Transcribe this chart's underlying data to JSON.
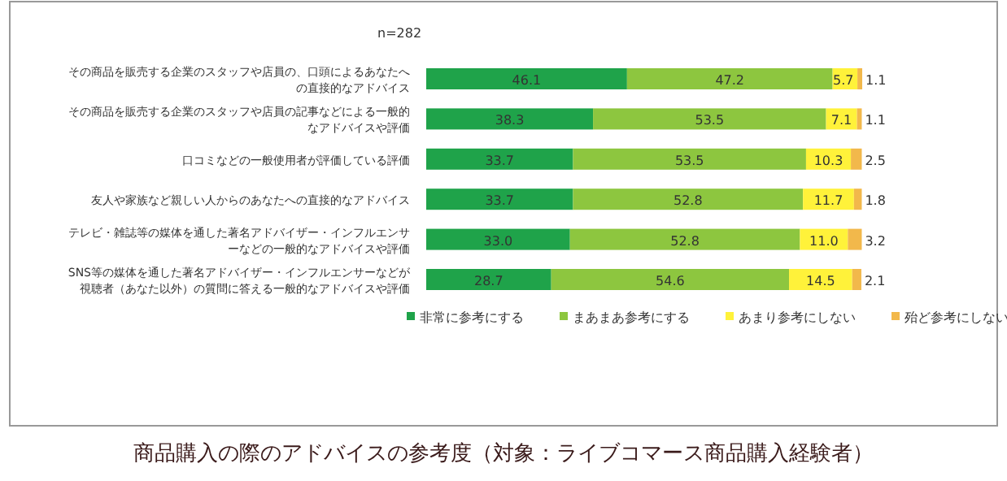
{
  "chart_data": {
    "type": "bar",
    "orientation": "horizontal",
    "stacked": true,
    "legend": "bottom",
    "title": "商品購入の際のアドバイスの参考度（対象：ライブコマース商品購入経験者）",
    "annotations": [
      "n=282"
    ],
    "categories": [
      "その商品を販売する企業のスタッフや店員の、口頭によるあなたへの直接的なアドバイス",
      "その商品を販売する企業のスタッフや店員の記事などによる一般的なアドバイスや評価",
      "口コミなどの一般使用者が評価している評価",
      "友人や家族など親しい人からのあなたへの直接的なアドバイス",
      "テレビ・雑誌等の媒体を通した著名アドバイザー・インフルエンサーなどの一般的なアドバイスや評価",
      "SNS等の媒体を通した著名アドバイザー・インフルエンサーなどが視聴者（あなた以外）の質問に答える一般的なアドバイスや評価"
    ],
    "series": [
      {
        "name": "非常に参考にする",
        "color": "#1fa34a",
        "values": [
          46.1,
          38.3,
          33.7,
          33.7,
          33.0,
          28.7
        ],
        "value_labels": [
          "46.1",
          "38.3",
          "33.7",
          "33.7",
          "33.0",
          "28.7"
        ]
      },
      {
        "name": "まあまあ参考にする",
        "color": "#8dc63f",
        "values": [
          47.2,
          53.5,
          53.5,
          52.8,
          52.8,
          54.6
        ],
        "value_labels": [
          "47.2",
          "53.5",
          "53.5",
          "52.8",
          "52.8",
          "54.6"
        ]
      },
      {
        "name": "あまり参考にしない",
        "color": "#fff23a",
        "values": [
          5.7,
          7.1,
          10.3,
          11.7,
          11.0,
          14.5
        ],
        "value_labels": [
          "5.7",
          "7.1",
          "10.3",
          "11.7",
          "11.0",
          "14.5"
        ]
      },
      {
        "name": "殆ど参考にしない",
        "color": "#f2b84b",
        "values": [
          1.1,
          1.1,
          2.5,
          1.8,
          3.2,
          2.1
        ],
        "value_labels": [
          "1.1",
          "1.1",
          "2.5",
          "1.8",
          "3.2",
          "2.1"
        ]
      }
    ]
  }
}
